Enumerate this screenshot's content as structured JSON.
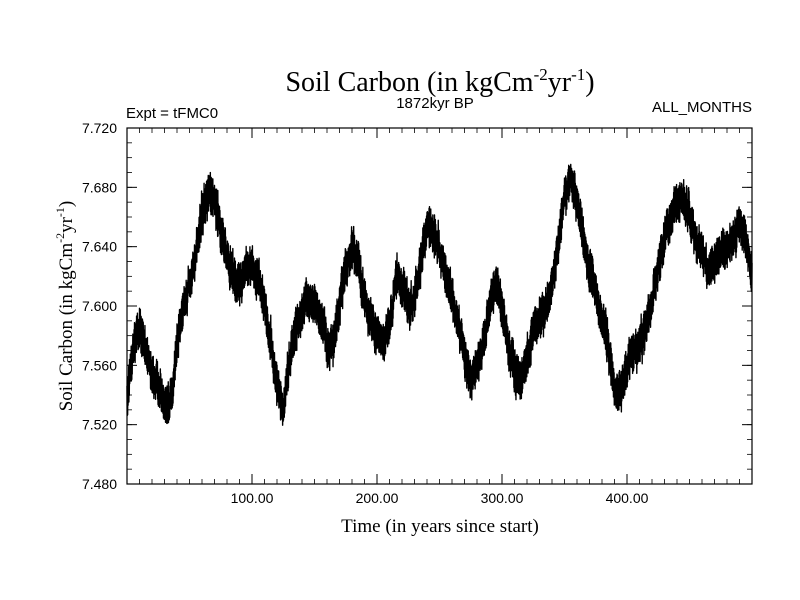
{
  "chart_data": {
    "type": "line",
    "title": "Soil Carbon (in kgCm",
    "title_sup1": "-2",
    "title_mid": "yr",
    "title_sup2": "-1",
    "title_end": ")",
    "subtitle_left": "Expt = tFMC0",
    "subtitle_center": "1872kyr BP",
    "subtitle_right": "ALL_MONTHS",
    "xlabel": "Time (in years since start)",
    "ylabel": "Soil Carbon (in kgCm",
    "ylabel_sup1": "-2",
    "ylabel_mid": "yr",
    "ylabel_sup2": "-1",
    "ylabel_end": ")",
    "xlim": [
      0,
      500
    ],
    "ylim": [
      7.48,
      7.72
    ],
    "x_ticks": [
      100,
      200,
      300,
      400
    ],
    "x_tick_labels": [
      "100.00",
      "200.00",
      "300.00",
      "400.00"
    ],
    "y_ticks": [
      7.48,
      7.52,
      7.56,
      7.6,
      7.64,
      7.68,
      7.72
    ],
    "y_tick_labels": [
      "7.480",
      "7.520",
      "7.560",
      "7.600",
      "7.640",
      "7.680",
      "7.720"
    ],
    "line_color": "#000000",
    "series": [
      {
        "name": "Soil Carbon",
        "x": [
          0,
          3,
          6,
          10,
          14,
          18,
          22,
          26,
          30,
          33,
          36,
          40,
          45,
          50,
          55,
          60,
          63,
          67,
          70,
          73,
          77,
          80,
          85,
          90,
          95,
          100,
          105,
          110,
          115,
          120,
          125,
          130,
          135,
          140,
          145,
          150,
          155,
          160,
          165,
          170,
          175,
          180,
          185,
          190,
          195,
          200,
          205,
          210,
          215,
          220,
          225,
          230,
          235,
          240,
          245,
          250,
          255,
          260,
          265,
          270,
          275,
          280,
          285,
          290,
          295,
          300,
          305,
          310,
          315,
          320,
          325,
          330,
          335,
          340,
          345,
          350,
          355,
          360,
          365,
          370,
          375,
          380,
          385,
          390,
          395,
          400,
          405,
          410,
          415,
          420,
          425,
          430,
          435,
          440,
          445,
          450,
          455,
          460,
          465,
          470,
          475,
          480,
          485,
          490,
          495,
          500
        ],
        "mean": [
          7.535,
          7.56,
          7.575,
          7.585,
          7.575,
          7.56,
          7.55,
          7.545,
          7.535,
          7.53,
          7.54,
          7.575,
          7.6,
          7.615,
          7.635,
          7.66,
          7.67,
          7.675,
          7.672,
          7.66,
          7.645,
          7.63,
          7.62,
          7.615,
          7.625,
          7.625,
          7.62,
          7.6,
          7.575,
          7.545,
          7.53,
          7.565,
          7.585,
          7.595,
          7.605,
          7.6,
          7.59,
          7.575,
          7.575,
          7.6,
          7.625,
          7.64,
          7.63,
          7.605,
          7.59,
          7.58,
          7.575,
          7.585,
          7.62,
          7.615,
          7.6,
          7.605,
          7.63,
          7.655,
          7.65,
          7.64,
          7.62,
          7.605,
          7.59,
          7.565,
          7.55,
          7.56,
          7.575,
          7.6,
          7.615,
          7.6,
          7.575,
          7.555,
          7.55,
          7.565,
          7.585,
          7.59,
          7.6,
          7.615,
          7.64,
          7.675,
          7.688,
          7.67,
          7.645,
          7.625,
          7.61,
          7.59,
          7.575,
          7.545,
          7.54,
          7.56,
          7.57,
          7.575,
          7.585,
          7.6,
          7.625,
          7.645,
          7.66,
          7.67,
          7.672,
          7.66,
          7.645,
          7.635,
          7.625,
          7.63,
          7.635,
          7.64,
          7.645,
          7.655,
          7.645,
          7.62
        ],
        "noise_amplitude": 0.012
      }
    ]
  }
}
